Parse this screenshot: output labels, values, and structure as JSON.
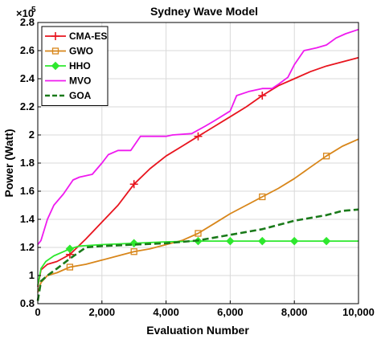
{
  "chart_data": {
    "type": "line",
    "title": "Sydney Wave Model",
    "xlabel": "Evaluation Number",
    "ylabel": "Power (Watt)",
    "y_multiplier": "×10",
    "y_exponent": "5",
    "xlim": [
      0,
      10000
    ],
    "ylim": [
      0.8,
      2.8
    ],
    "x_ticks": [
      0,
      2000,
      4000,
      6000,
      8000,
      10000
    ],
    "x_tick_labels": [
      "0",
      "2,000",
      "4,000",
      "6,000",
      "8,000",
      "10,000"
    ],
    "y_ticks": [
      0.8,
      1.0,
      1.2,
      1.4,
      1.6,
      1.8,
      2.0,
      2.2,
      2.4,
      2.6,
      2.8
    ],
    "y_tick_labels": [
      "0.8",
      "1",
      "1.2",
      "1.4",
      "1.6",
      "1.8",
      "2",
      "2.2",
      "2.4",
      "2.6",
      "2.8"
    ],
    "grid": true,
    "legend_position": "top-left",
    "series": [
      {
        "name": "CMA-ES",
        "color": "#e8141e",
        "dash": "solid",
        "marker": "plus",
        "marker_x": [
          1000,
          3000,
          5000,
          7000
        ],
        "x": [
          0,
          100,
          300,
          600,
          1000,
          1500,
          2000,
          2500,
          3000,
          3500,
          4000,
          4500,
          5000,
          5500,
          6000,
          6500,
          7000,
          7500,
          8000,
          8500,
          9000,
          9500,
          10000
        ],
        "y": [
          0.92,
          1.04,
          1.08,
          1.1,
          1.15,
          1.26,
          1.38,
          1.5,
          1.65,
          1.76,
          1.85,
          1.92,
          1.99,
          2.06,
          2.13,
          2.2,
          2.28,
          2.35,
          2.4,
          2.45,
          2.49,
          2.52,
          2.55
        ]
      },
      {
        "name": "GWO",
        "color": "#d8861a",
        "dash": "solid",
        "marker": "square",
        "marker_x": [
          1000,
          3000,
          5000,
          7000,
          9000
        ],
        "x": [
          0,
          100,
          300,
          600,
          1000,
          1500,
          2000,
          2500,
          3000,
          3500,
          4000,
          4500,
          5000,
          5500,
          6000,
          6500,
          7000,
          7500,
          8000,
          8500,
          9000,
          9500,
          10000
        ],
        "y": [
          0.88,
          0.95,
          1.0,
          1.02,
          1.06,
          1.08,
          1.11,
          1.14,
          1.17,
          1.19,
          1.22,
          1.25,
          1.3,
          1.37,
          1.44,
          1.5,
          1.56,
          1.62,
          1.69,
          1.77,
          1.85,
          1.92,
          1.97
        ]
      },
      {
        "name": "HHO",
        "color": "#2ee82e",
        "dash": "solid",
        "marker": "diamond",
        "marker_x": [
          1000,
          3000,
          5000,
          6000,
          7000,
          8000,
          9000
        ],
        "x": [
          0,
          100,
          250,
          500,
          800,
          1000,
          1300,
          2000,
          3000,
          4000,
          5000,
          6000,
          7000,
          8000,
          9000,
          10000
        ],
        "y": [
          0.93,
          1.05,
          1.1,
          1.14,
          1.17,
          1.19,
          1.21,
          1.22,
          1.23,
          1.24,
          1.245,
          1.245,
          1.245,
          1.245,
          1.245,
          1.245
        ]
      },
      {
        "name": "MVO",
        "color": "#ef1aef",
        "dash": "solid",
        "marker": "none",
        "x": [
          0,
          100,
          300,
          500,
          800,
          1100,
          1300,
          1700,
          2000,
          2200,
          2500,
          2900,
          3200,
          4000,
          4200,
          4800,
          5200,
          5500,
          6000,
          6200,
          6600,
          7000,
          7300,
          7500,
          7800,
          8000,
          8300,
          8700,
          9000,
          9300,
          9600,
          10000
        ],
        "y": [
          1.22,
          1.25,
          1.4,
          1.5,
          1.58,
          1.68,
          1.7,
          1.72,
          1.8,
          1.86,
          1.89,
          1.89,
          1.99,
          1.99,
          2.0,
          2.01,
          2.06,
          2.1,
          2.17,
          2.28,
          2.31,
          2.33,
          2.33,
          2.36,
          2.41,
          2.5,
          2.6,
          2.62,
          2.64,
          2.69,
          2.72,
          2.75
        ]
      },
      {
        "name": "GOA",
        "color": "#1a7a1a",
        "dash": "dashed",
        "marker": "none",
        "x": [
          0,
          100,
          300,
          600,
          1000,
          1500,
          2000,
          3000,
          4000,
          5000,
          5500,
          6000,
          6500,
          7000,
          7500,
          8000,
          8500,
          9000,
          9500,
          10000
        ],
        "y": [
          0.82,
          0.96,
          1.0,
          1.05,
          1.12,
          1.2,
          1.21,
          1.22,
          1.23,
          1.25,
          1.27,
          1.29,
          1.31,
          1.33,
          1.36,
          1.39,
          1.41,
          1.43,
          1.46,
          1.47
        ]
      }
    ]
  }
}
